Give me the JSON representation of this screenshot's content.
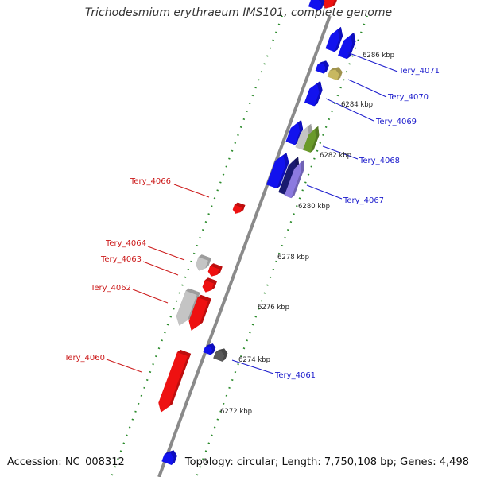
{
  "title": "Trichodesmium erythraeum IMS101, complete genome",
  "footer": {
    "accession": "Accession: NC_008312",
    "topology": "Topology: circular; Length: 7,750,108 bp; Genes: 4,498"
  },
  "colors": {
    "forward_gene": "#1212ee",
    "reverse_gene": "#ee1111",
    "highlight_olive": "#c8b860",
    "highlight_green": "#6a9a2a",
    "highlight_purple": "#8c7ae0",
    "highlight_navy": "#1a1a70",
    "gray_gene": "#c4c4c4",
    "dark_gray_gene": "#5a5a5a",
    "backbone": "#8a8a8a",
    "tick_dots": "#2a8a2a"
  },
  "tick_labels": [
    {
      "id": "t6286",
      "text": "6286 kbp"
    },
    {
      "id": "t6284",
      "text": "6284 kbp"
    },
    {
      "id": "t6282",
      "text": "6282 kbp"
    },
    {
      "id": "t6280",
      "text": "6280 kbp"
    },
    {
      "id": "t6278",
      "text": "6278 kbp"
    },
    {
      "id": "t6276",
      "text": "6276 kbp"
    },
    {
      "id": "t6274",
      "text": "6274 kbp"
    },
    {
      "id": "t6272",
      "text": "6272 kbp"
    }
  ],
  "forward_labels": [
    {
      "id": "f4071",
      "text": "Tery_4071"
    },
    {
      "id": "f4070",
      "text": "Tery_4070"
    },
    {
      "id": "f4069",
      "text": "Tery_4069"
    },
    {
      "id": "f4068",
      "text": "Tery_4068"
    },
    {
      "id": "f4067",
      "text": "Tery_4067"
    },
    {
      "id": "f4061",
      "text": "Tery_4061"
    }
  ],
  "reverse_labels": [
    {
      "id": "r4066",
      "text": "Tery_4066"
    },
    {
      "id": "r4064",
      "text": "Tery_4064"
    },
    {
      "id": "r4063",
      "text": "Tery_4063"
    },
    {
      "id": "r4062",
      "text": "Tery_4062"
    },
    {
      "id": "r4060",
      "text": "Tery_4060"
    }
  ],
  "partial_label": "6"
}
